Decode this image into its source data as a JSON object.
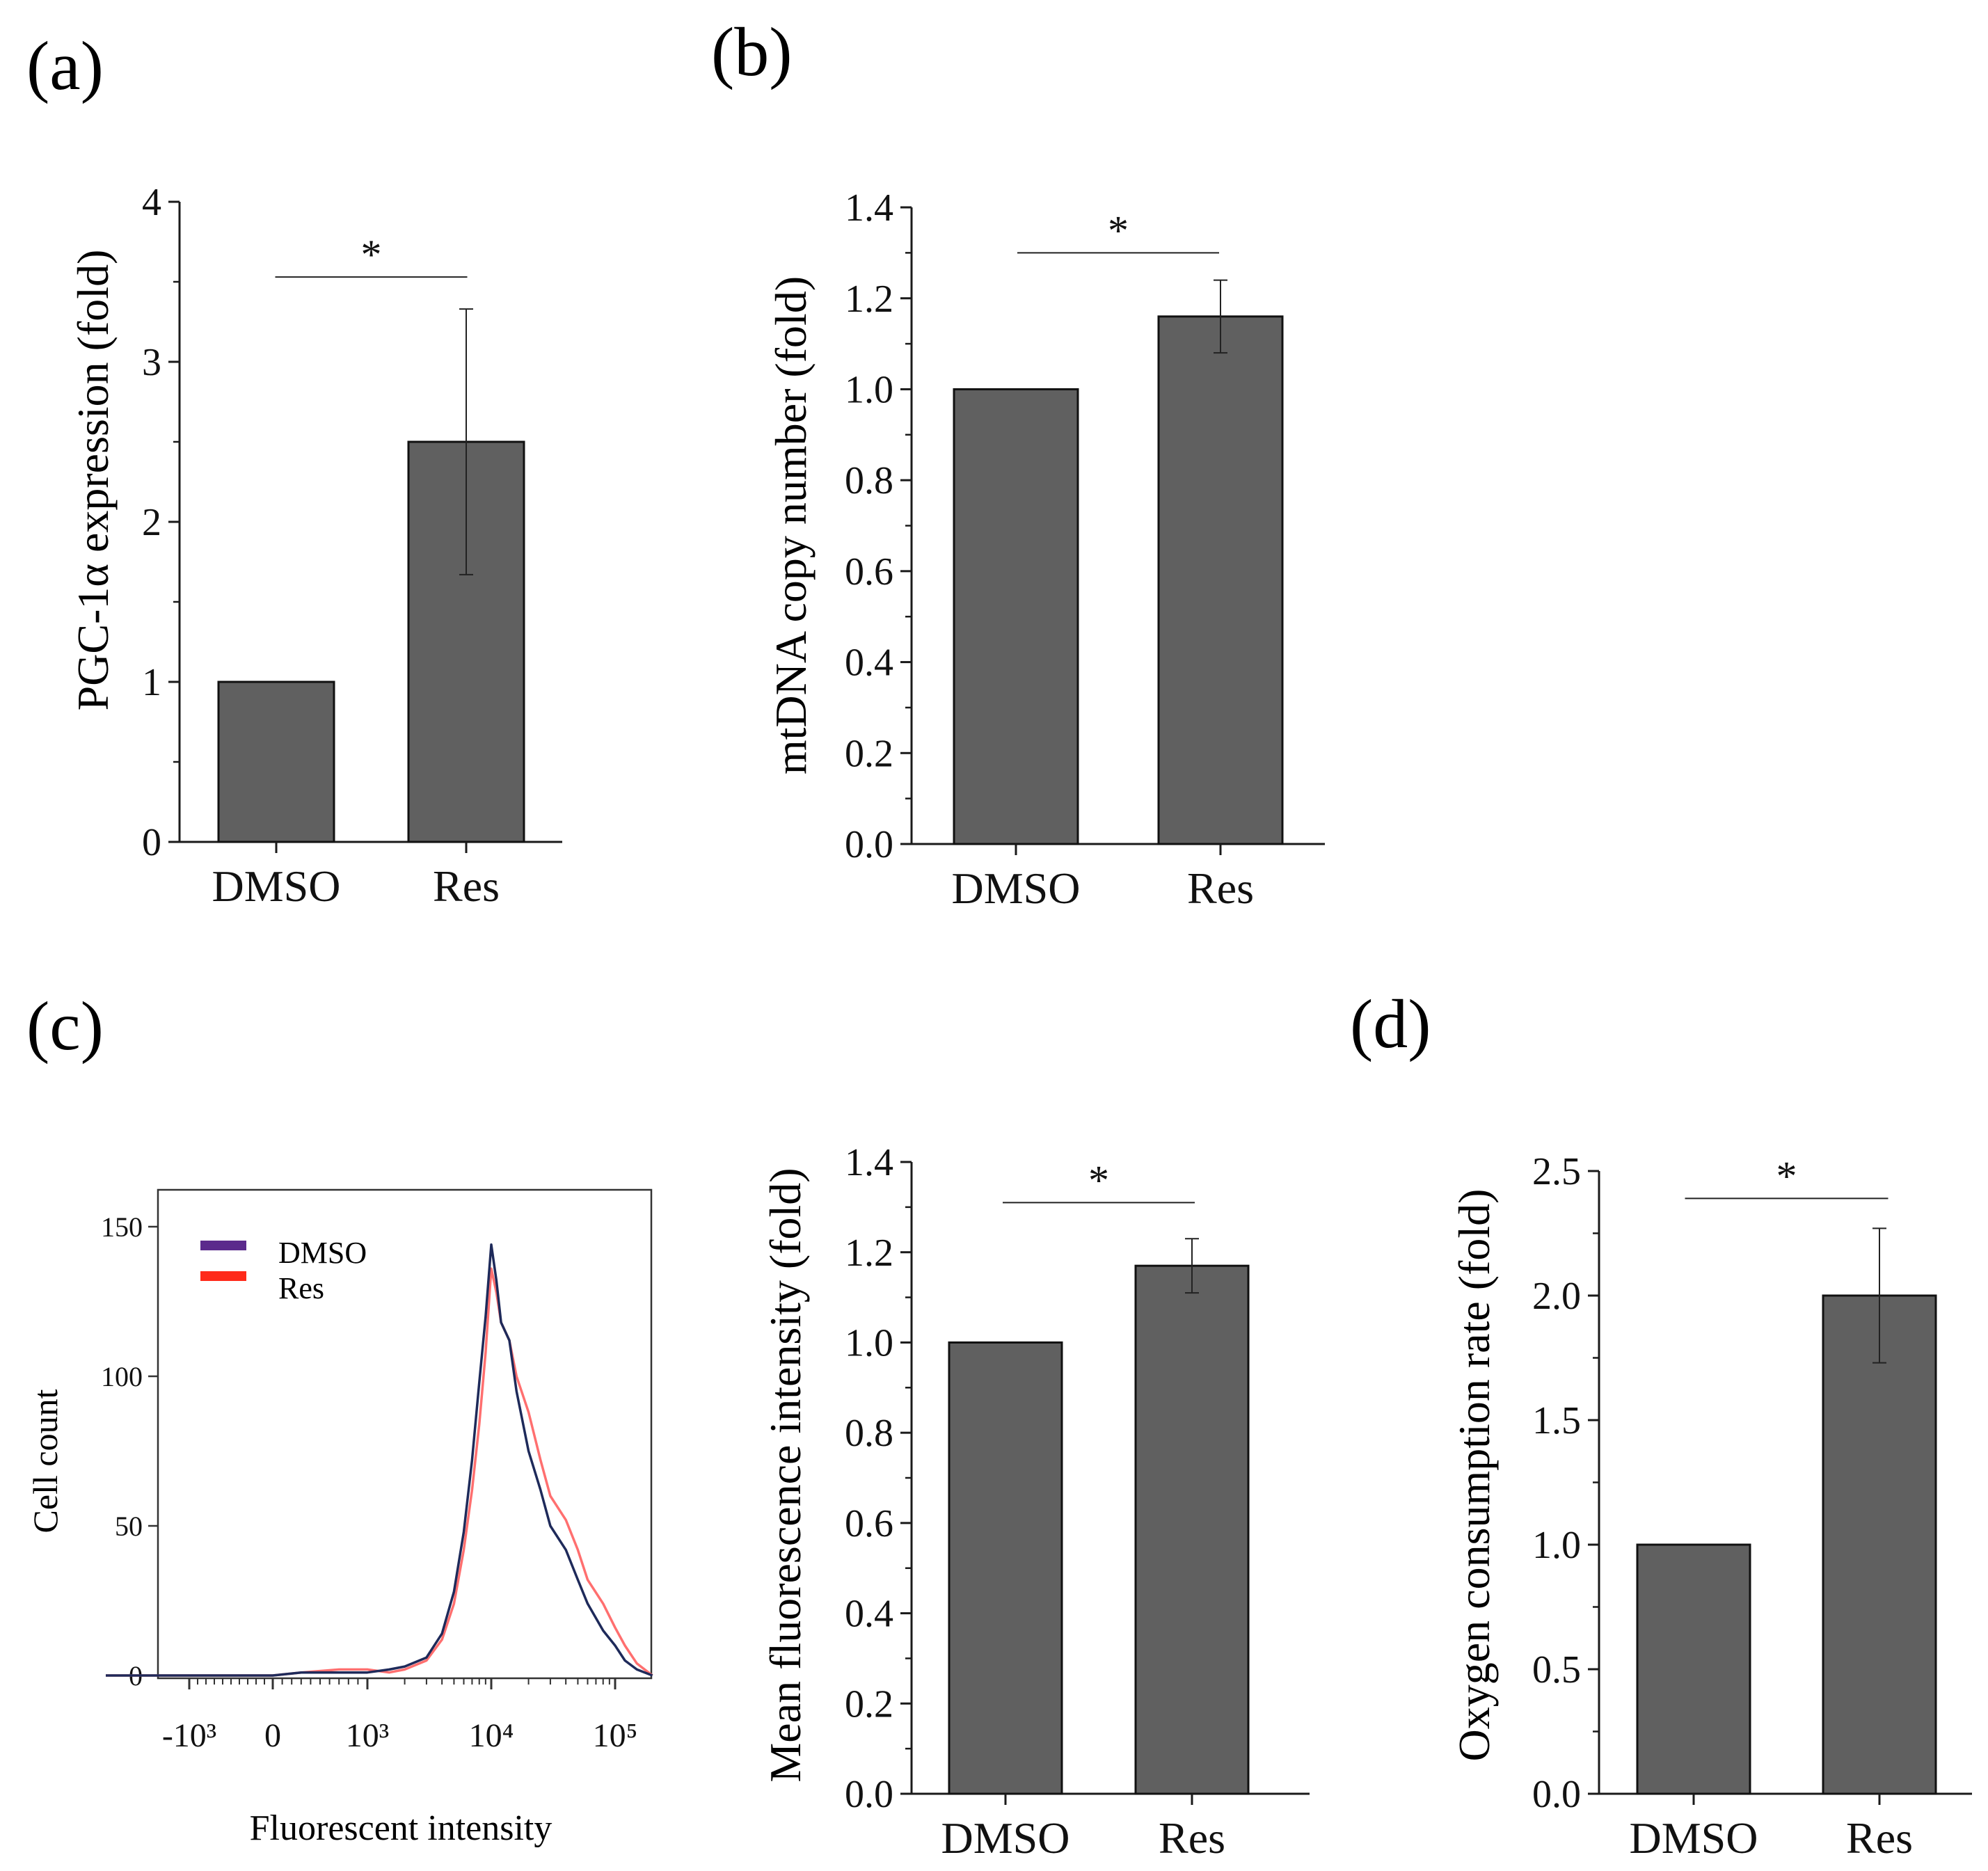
{
  "colors": {
    "bar": "#606060",
    "axis": "#1a1a1a",
    "dmso_line": "#1e2a5a",
    "res_line": "#ff6f6f",
    "dmso_legend": "#5b2a8c",
    "res_legend": "#ff2a1a"
  },
  "chart_data": [
    {
      "panel": "(a)",
      "type": "bar",
      "categories": [
        "DMSO",
        "Res"
      ],
      "values": [
        1.0,
        2.5
      ],
      "errors": [
        0,
        0.83
      ],
      "ylabel": "PGC-1α expression (fold)",
      "xlabel": "",
      "ylim": [
        0,
        4
      ],
      "yticks": [
        0,
        1,
        2,
        3,
        4
      ],
      "ytick_labels": [
        "0",
        "1",
        "2",
        "3",
        "4"
      ],
      "significance": {
        "label": "*",
        "between": [
          "DMSO",
          "Res"
        ],
        "level": 3.53
      }
    },
    {
      "panel": "(b)",
      "type": "bar",
      "categories": [
        "DMSO",
        "Res"
      ],
      "values": [
        1.0,
        1.16
      ],
      "errors": [
        0,
        0.08
      ],
      "ylabel": "mtDNA copy number (fold)",
      "xlabel": "",
      "ylim": [
        0,
        1.4
      ],
      "yticks": [
        0,
        0.2,
        0.4,
        0.6,
        0.8,
        1.0,
        1.2,
        1.4
      ],
      "ytick_labels": [
        "0.0",
        "0.2",
        "0.4",
        "0.6",
        "0.8",
        "1.0",
        "1.2",
        "1.4"
      ],
      "significance": {
        "label": "*",
        "between": [
          "DMSO",
          "Res"
        ],
        "level": 1.3
      }
    },
    {
      "panel": "(c)",
      "type": "line",
      "title": "",
      "xlabel": "Fluorescent intensity",
      "ylabel": "Cell count",
      "ylim": [
        0,
        160
      ],
      "xlim": [
        -2000,
        300000
      ],
      "xticks": [
        -1000,
        0,
        1000,
        10000,
        100000
      ],
      "xtick_labels": [
        "-10³",
        "0",
        "10³",
        "10⁴",
        "10⁵"
      ],
      "yticks": [
        0,
        50,
        100,
        150
      ],
      "ytick_labels": [
        "0",
        "50",
        "100",
        "150"
      ],
      "legend": "top-left",
      "series": [
        {
          "name": "DMSO",
          "x": [
            -2000,
            -1000,
            -500,
            0,
            300,
            700,
            1000,
            1500,
            2000,
            3000,
            4000,
            5000,
            6000,
            7000,
            8000,
            9000,
            10000,
            11000,
            12000,
            14000,
            16000,
            20000,
            25000,
            30000,
            40000,
            50000,
            60000,
            80000,
            100000,
            120000,
            150000,
            200000
          ],
          "values": [
            0,
            0,
            0,
            0,
            1,
            1,
            1,
            2,
            3,
            6,
            14,
            28,
            48,
            72,
            98,
            120,
            144,
            132,
            118,
            112,
            95,
            75,
            62,
            50,
            42,
            32,
            24,
            15,
            10,
            5,
            2,
            0
          ]
        },
        {
          "name": "Res",
          "x": [
            -2000,
            -1000,
            -500,
            0,
            300,
            700,
            1000,
            1500,
            2000,
            3000,
            4000,
            5000,
            6000,
            7000,
            8000,
            9000,
            10000,
            11000,
            12000,
            14000,
            16000,
            20000,
            25000,
            30000,
            40000,
            50000,
            60000,
            80000,
            100000,
            120000,
            150000,
            200000
          ],
          "values": [
            0,
            0,
            0,
            0,
            1,
            2,
            2,
            1,
            2,
            5,
            12,
            24,
            42,
            62,
            84,
            108,
            136,
            128,
            118,
            112,
            100,
            88,
            72,
            60,
            52,
            42,
            32,
            24,
            16,
            10,
            4,
            0
          ]
        }
      ]
    },
    {
      "panel": "",
      "type": "bar",
      "categories": [
        "DMSO",
        "Res"
      ],
      "values": [
        1.0,
        1.17
      ],
      "errors": [
        0,
        0.06
      ],
      "ylabel": "Mean fluorescence intensity (fold)",
      "xlabel": "",
      "ylim": [
        0,
        1.4
      ],
      "yticks": [
        0,
        0.2,
        0.4,
        0.6,
        0.8,
        1.0,
        1.2,
        1.4
      ],
      "ytick_labels": [
        "0.0",
        "0.2",
        "0.4",
        "0.6",
        "0.8",
        "1.0",
        "1.2",
        "1.4"
      ],
      "significance": {
        "label": "*",
        "between": [
          "DMSO",
          "Res"
        ],
        "level": 1.31
      }
    },
    {
      "panel": "(d)",
      "type": "bar",
      "categories": [
        "DMSO",
        "Res"
      ],
      "values": [
        1.0,
        2.0
      ],
      "errors": [
        0,
        0.27
      ],
      "ylabel": "Oxygen consumption rate (fold)",
      "xlabel": "",
      "ylim": [
        0,
        2.5
      ],
      "yticks": [
        0,
        0.5,
        1.0,
        1.5,
        2.0,
        2.5
      ],
      "ytick_labels": [
        "0.0",
        "0.5",
        "1.0",
        "1.5",
        "2.0",
        "2.5"
      ],
      "significance": {
        "label": "*",
        "between": [
          "DMSO",
          "Res"
        ],
        "level": 2.39
      }
    }
  ]
}
